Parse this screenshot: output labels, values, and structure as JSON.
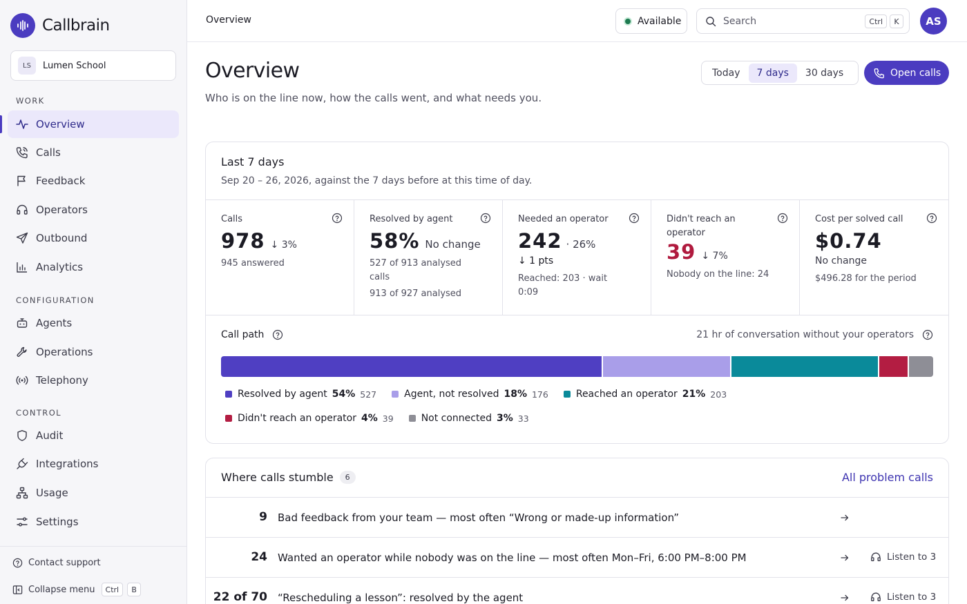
{
  "app": {
    "name": "Callbrain"
  },
  "workspace": {
    "initials": "LS",
    "name": "Lumen School"
  },
  "sidebar": {
    "sections": [
      {
        "label": "WORK"
      },
      {
        "label": "CONFIGURATION"
      },
      {
        "label": "CONTROL"
      }
    ],
    "items": [
      {
        "label": "Overview",
        "icon": "activity-icon",
        "active": true
      },
      {
        "label": "Calls",
        "icon": "phone-icon"
      },
      {
        "label": "Feedback",
        "icon": "flag-icon"
      },
      {
        "label": "Operators",
        "icon": "headset-icon"
      },
      {
        "label": "Outbound",
        "icon": "send-icon"
      },
      {
        "label": "Analytics",
        "icon": "bar-chart-icon"
      },
      {
        "label": "Agents",
        "icon": "bot-icon"
      },
      {
        "label": "Operations",
        "icon": "wrench-icon"
      },
      {
        "label": "Telephony",
        "icon": "radio-icon"
      },
      {
        "label": "Audit",
        "icon": "shield-icon"
      },
      {
        "label": "Integrations",
        "icon": "plug-icon"
      },
      {
        "label": "Usage",
        "icon": "network-icon"
      },
      {
        "label": "Settings",
        "icon": "sliders-icon"
      }
    ],
    "contact_support": "Contact support",
    "collapse_menu": "Collapse menu",
    "collapse_keys": [
      "Ctrl",
      "B"
    ]
  },
  "topbar": {
    "breadcrumb": "Overview",
    "status": "Available",
    "search_placeholder": "Search",
    "search_keys": [
      "Ctrl",
      "K"
    ],
    "user_initials": "AS"
  },
  "page": {
    "title": "Overview",
    "subtitle": "Who is on the line now, how the calls went, and what needs you.",
    "ranges": [
      "Today",
      "7 days",
      "30 days"
    ],
    "selected_range": "7 days",
    "open_calls": "Open calls"
  },
  "summary": {
    "title": "Last 7 days",
    "subtitle": "Sep 20 – 26, 2026, against the 7 days before at this time of day.",
    "metrics": [
      {
        "label": "Calls",
        "value": "978",
        "delta": "↓ 3%",
        "note": "945 answered",
        "note2": ""
      },
      {
        "label": "Resolved by agent",
        "value": "58%",
        "delta": "No change",
        "note": "527 of 913 analysed calls",
        "note2": "913 of 927 analysed"
      },
      {
        "label": "Needed an operator",
        "value": "242",
        "delta": "· 26%",
        "delta2": "↓ 1  pts",
        "note": "Reached: 203 · wait 0:09",
        "note2": ""
      },
      {
        "label": "Didn't reach an operator",
        "value": "39",
        "delta": "↓ 7%",
        "note": "Nobody on the line: 24",
        "note2": ""
      },
      {
        "label": "Cost per solved call",
        "value": "$0.74",
        "delta": "No change",
        "note": "$496.28 for the period",
        "note2": ""
      }
    ]
  },
  "call_path": {
    "title": "Call path",
    "right_note": "21 hr of conversation without your operators",
    "segments": [
      {
        "label": "Resolved by agent",
        "pct": "54%",
        "count": "527",
        "share": 0.539,
        "color": "#4f3fc2"
      },
      {
        "label": "Agent, not resolved",
        "pct": "18%",
        "count": "176",
        "share": 0.18,
        "color": "#a99ee9"
      },
      {
        "label": "Reached an operator",
        "pct": "21%",
        "count": "203",
        "share": 0.208,
        "color": "#0a8a9a"
      },
      {
        "label": "Didn't reach an operator",
        "pct": "4%",
        "count": "39",
        "share": 0.04,
        "color": "#b31d42"
      },
      {
        "label": "Not connected",
        "pct": "3%",
        "count": "33",
        "share": 0.034,
        "color": "#8e8e96"
      }
    ]
  },
  "stumble": {
    "title": "Where calls stumble",
    "count": "6",
    "link": "All problem calls",
    "rows": [
      {
        "num": "9",
        "text": "Bad feedback from your team — most often “Wrong or made-up information”",
        "listen": ""
      },
      {
        "num": "24",
        "text": "Wanted an operator while nobody was on the line — most often Mon–Fri, 6:00 PM–8:00 PM",
        "listen": "Listen to 3"
      },
      {
        "num": "22 of 70",
        "text": "“Rescheduling a lesson”: resolved by the agent",
        "listen": "Listen to 3"
      }
    ]
  }
}
